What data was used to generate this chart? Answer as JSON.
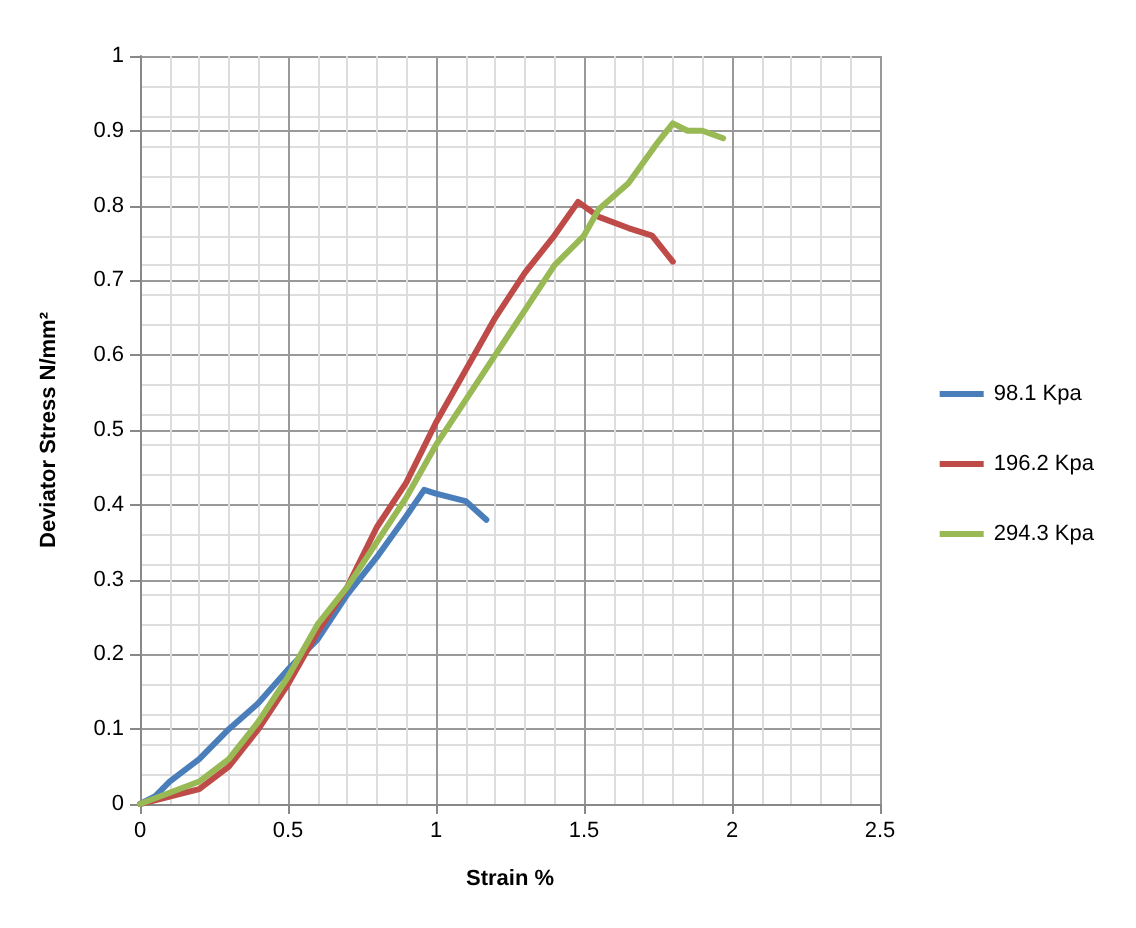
{
  "chart_data": {
    "type": "line",
    "xlabel": "Strain %",
    "ylabel": "Deviator Stress N/mm²",
    "xlim": [
      0,
      2.5
    ],
    "xticks": [
      0,
      0.5,
      1,
      1.5,
      2,
      2.5
    ],
    "ylim": [
      0,
      1
    ],
    "yticks": [
      0,
      0.1,
      0.2,
      0.3,
      0.4,
      0.5,
      0.6,
      0.7,
      0.8,
      0.9,
      1
    ],
    "grid": true,
    "legend": "right",
    "marker": "none",
    "line_style": "solid",
    "series": [
      {
        "name": "98.1 Kpa",
        "color": "#4a7ebb",
        "x": [
          0,
          0.05,
          0.1,
          0.2,
          0.3,
          0.4,
          0.5,
          0.6,
          0.7,
          0.8,
          0.9,
          0.96,
          1.0,
          1.1,
          1.17
        ],
        "values": [
          0,
          0.01,
          0.03,
          0.06,
          0.1,
          0.135,
          0.18,
          0.22,
          0.28,
          0.33,
          0.385,
          0.42,
          0.415,
          0.405,
          0.38
        ]
      },
      {
        "name": "196.2 Kpa",
        "color": "#be4b48",
        "x": [
          0,
          0.1,
          0.2,
          0.3,
          0.4,
          0.5,
          0.6,
          0.7,
          0.8,
          0.9,
          1.0,
          1.1,
          1.2,
          1.3,
          1.4,
          1.48,
          1.55,
          1.65,
          1.73,
          1.8
        ],
        "values": [
          0,
          0.01,
          0.02,
          0.05,
          0.1,
          0.16,
          0.23,
          0.29,
          0.37,
          0.43,
          0.51,
          0.58,
          0.65,
          0.71,
          0.76,
          0.805,
          0.785,
          0.77,
          0.76,
          0.725
        ]
      },
      {
        "name": "294.3 Kpa",
        "color": "#98b954",
        "x": [
          0,
          0.1,
          0.2,
          0.3,
          0.4,
          0.5,
          0.6,
          0.7,
          0.8,
          0.9,
          1.0,
          1.1,
          1.2,
          1.3,
          1.4,
          1.5,
          1.55,
          1.65,
          1.75,
          1.8,
          1.85,
          1.9,
          1.97
        ],
        "values": [
          0,
          0.015,
          0.03,
          0.06,
          0.11,
          0.17,
          0.24,
          0.29,
          0.35,
          0.41,
          0.48,
          0.54,
          0.6,
          0.66,
          0.72,
          0.76,
          0.795,
          0.83,
          0.885,
          0.91,
          0.9,
          0.9,
          0.89
        ]
      }
    ]
  }
}
